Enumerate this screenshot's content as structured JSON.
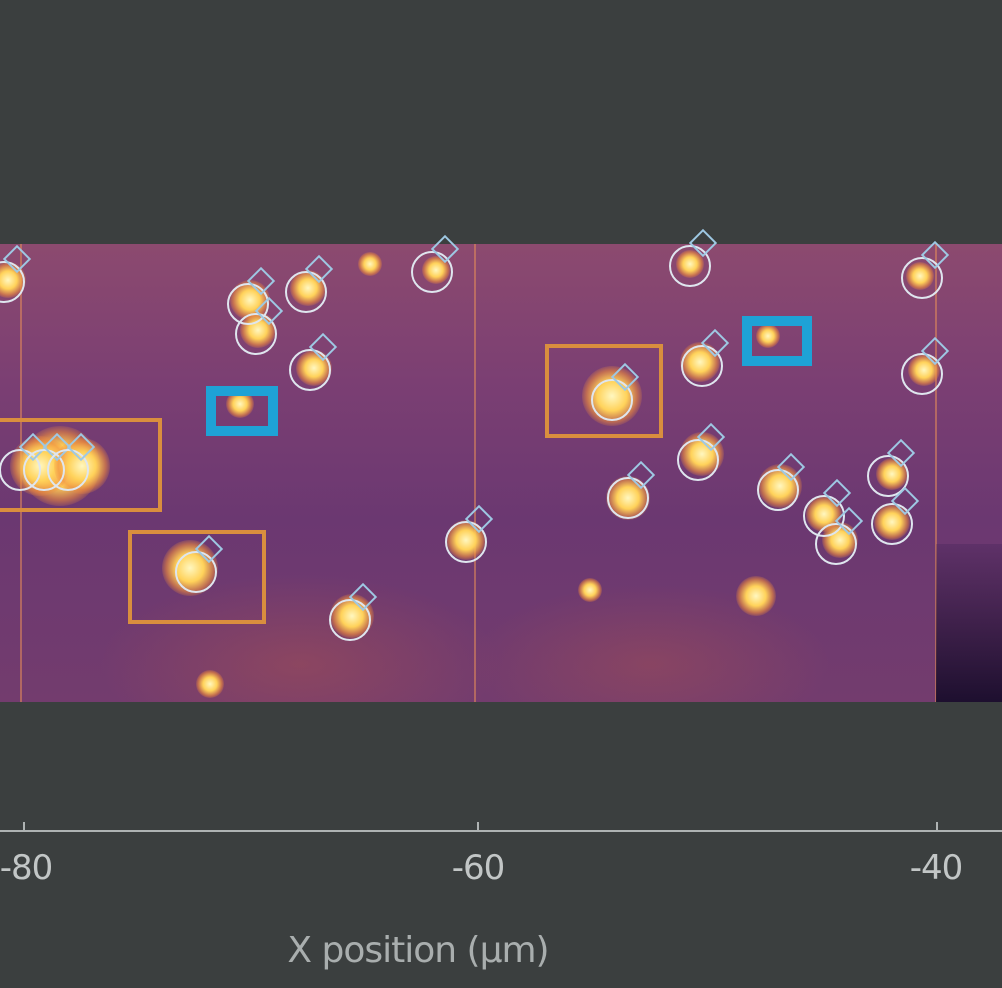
{
  "colors": {
    "background": "#3b3f3f",
    "roi_orange": "#d98e3e",
    "roi_blue": "#1ea2d6",
    "marker_ring": "#dfe6ef",
    "marker_diamond": "#9ec8e3",
    "axis": "#aeb3b3"
  },
  "x_axis": {
    "title": "X position (µm)",
    "ticks": [
      "-80",
      "-60",
      "-40"
    ]
  },
  "icons": {
    "marker_ring": "circle-marker-icon",
    "marker_diamond": "diamond-marker-icon"
  }
}
